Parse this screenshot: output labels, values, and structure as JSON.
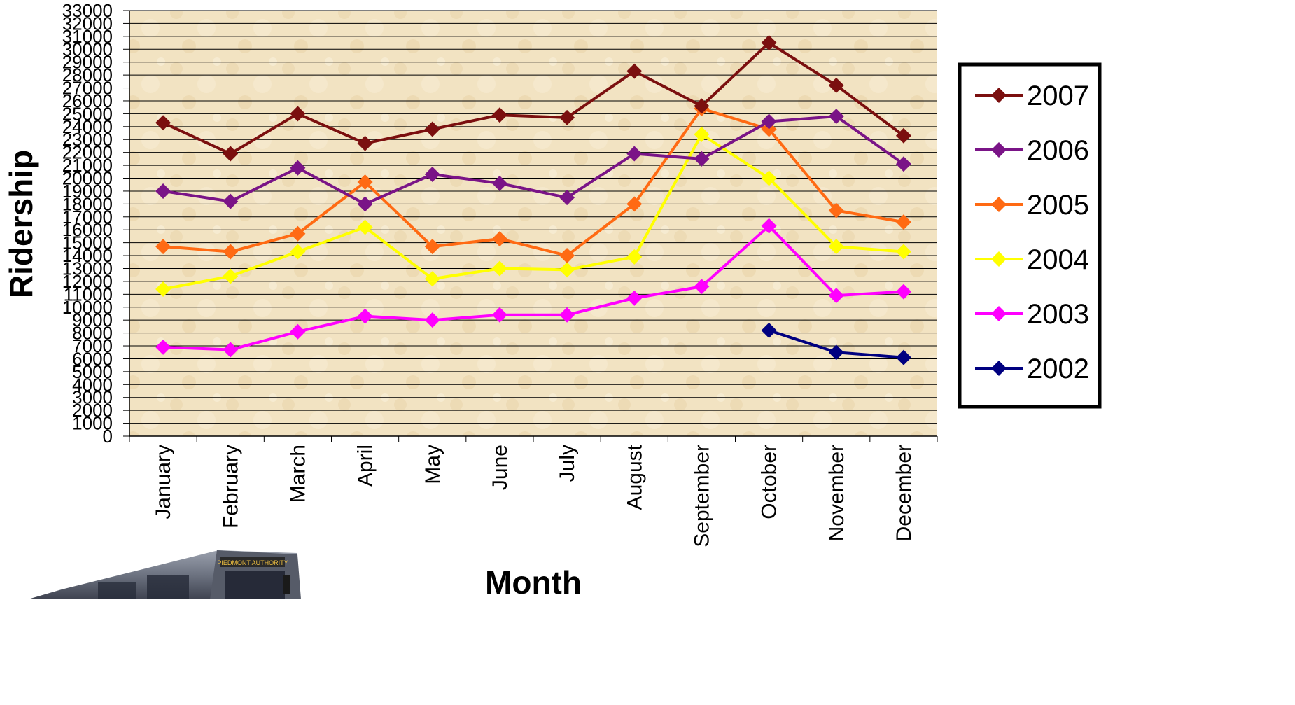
{
  "chart_data": {
    "type": "line",
    "title": "",
    "xlabel": "Month",
    "ylabel": "Ridership",
    "categories": [
      "January",
      "February",
      "March",
      "April",
      "May",
      "June",
      "July",
      "August",
      "September",
      "October",
      "November",
      "December"
    ],
    "ylim": [
      0,
      33000
    ],
    "yticks": [
      0,
      1000,
      2000,
      3000,
      4000,
      5000,
      6000,
      7000,
      8000,
      9000,
      10000,
      11000,
      12000,
      13000,
      14000,
      15000,
      16000,
      17000,
      18000,
      19000,
      20000,
      21000,
      22000,
      23000,
      24000,
      25000,
      26000,
      27000,
      28000,
      29000,
      30000,
      31000,
      32000,
      33000
    ],
    "grid": true,
    "legend_position": "right",
    "series": [
      {
        "name": "2007",
        "color": "#7b0f0f",
        "values": [
          24300,
          21900,
          25000,
          22700,
          23800,
          24900,
          24700,
          28300,
          25600,
          30500,
          27200,
          23300
        ]
      },
      {
        "name": "2006",
        "color": "#7a1487",
        "values": [
          19000,
          18200,
          20800,
          18000,
          20300,
          19600,
          18500,
          21900,
          21500,
          24400,
          24800,
          21100
        ]
      },
      {
        "name": "2005",
        "color": "#ff6a13",
        "values": [
          14700,
          14300,
          15700,
          19700,
          14700,
          15300,
          14000,
          18000,
          25400,
          23800,
          17500,
          16600
        ]
      },
      {
        "name": "2004",
        "color": "#ffff00",
        "values": [
          11400,
          12400,
          14300,
          16200,
          12200,
          13000,
          12900,
          13900,
          23400,
          20000,
          14700,
          14300
        ]
      },
      {
        "name": "2003",
        "color": "#ff00ff",
        "values": [
          6900,
          6700,
          8100,
          9300,
          9000,
          9400,
          9400,
          10700,
          11600,
          16300,
          10900,
          11200
        ]
      },
      {
        "name": "2002",
        "color": "#000080",
        "values": [
          null,
          null,
          null,
          null,
          null,
          null,
          null,
          null,
          null,
          8200,
          6500,
          6100
        ]
      }
    ]
  },
  "image": {
    "icon": "bus-photo",
    "sign_text": "PIEDMONT AUTHORITY"
  }
}
